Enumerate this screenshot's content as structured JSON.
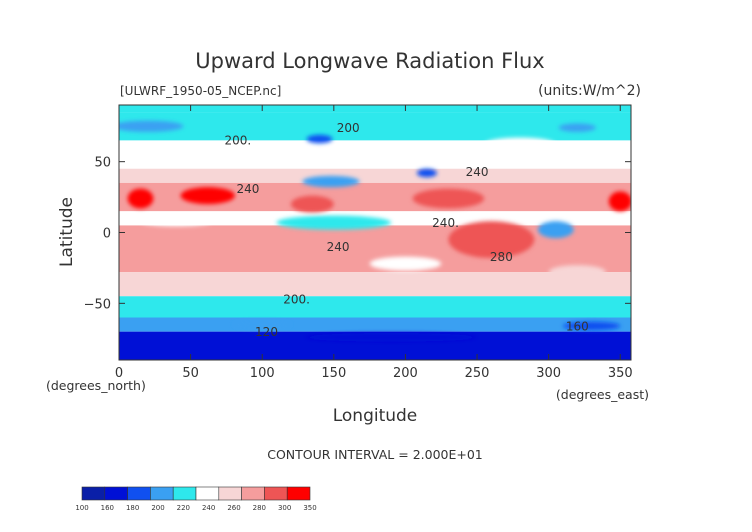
{
  "chart_data": {
    "type": "heatmap",
    "title": "Upward Longwave Radiation Flux",
    "subtitle_left": "[ULWRF_1950-05_NCEP.nc]",
    "subtitle_right": "(units:W/m^2)",
    "xlabel": "Longitude",
    "ylabel": "Latitude",
    "x_unit_label": "(degrees_east)",
    "y_unit_label": "(degrees_north)",
    "xlim": [
      0,
      357.5
    ],
    "ylim": [
      -90,
      90
    ],
    "x_ticks": [
      0,
      50,
      100,
      150,
      200,
      250,
      300,
      350
    ],
    "x_tick_labels": [
      "0",
      "50",
      "100",
      "150",
      "200",
      "250",
      "300",
      "350"
    ],
    "y_ticks": [
      50,
      0,
      -50
    ],
    "y_tick_labels": [
      "50",
      "0",
      "−50"
    ],
    "contour_interval_text": "CONTOUR INTERVAL = 2.000E+01",
    "colorbar": {
      "boundaries": [
        100,
        140,
        160,
        180,
        200,
        220,
        240,
        260,
        280,
        300,
        350
      ],
      "tick_labels": [
        "100",
        "160",
        "180",
        "200",
        "220",
        "240",
        "260",
        "280",
        "300",
        "350"
      ],
      "colors": [
        "#0a1fa8",
        "#0010d6",
        "#1050f0",
        "#3aa0f2",
        "#2ee8ec",
        "#ffffff",
        "#f7d6d6",
        "#f59d9d",
        "#ee5555",
        "#ff0000"
      ]
    },
    "contour_labels": [
      {
        "text": "200",
        "lon": 160,
        "lat": 71
      },
      {
        "text": "200.",
        "lon": 83,
        "lat": 62
      },
      {
        "text": "240",
        "lon": 250,
        "lat": 40
      },
      {
        "text": "240",
        "lon": 90,
        "lat": 28
      },
      {
        "text": "240.",
        "lon": 228,
        "lat": 4
      },
      {
        "text": "240",
        "lon": 153,
        "lat": -13
      },
      {
        "text": "280",
        "lon": 267,
        "lat": -20
      },
      {
        "text": "200.",
        "lon": 124,
        "lat": -50
      },
      {
        "text": "120",
        "lon": 103,
        "lat": -73
      },
      {
        "text": "160",
        "lon": 320,
        "lat": -69
      }
    ],
    "bands": [
      {
        "lat_top": 90,
        "lat_bottom": 85,
        "value": 205
      },
      {
        "lat_top": 85,
        "lat_bottom": 65,
        "value": 215
      },
      {
        "lat_top": 65,
        "lat_bottom": 45,
        "value": 232
      },
      {
        "lat_top": 45,
        "lat_bottom": 35,
        "value": 248
      },
      {
        "lat_top": 35,
        "lat_bottom": 15,
        "value": 275
      },
      {
        "lat_top": 15,
        "lat_bottom": 5,
        "value": 238
      },
      {
        "lat_top": 5,
        "lat_bottom": -12,
        "value": 262
      },
      {
        "lat_top": -12,
        "lat_bottom": -28,
        "value": 268
      },
      {
        "lat_top": -28,
        "lat_bottom": -45,
        "value": 242
      },
      {
        "lat_top": -45,
        "lat_bottom": -60,
        "value": 215
      },
      {
        "lat_top": -60,
        "lat_bottom": -70,
        "value": 195
      },
      {
        "lat_top": -70,
        "lat_bottom": -90,
        "value": 150
      }
    ],
    "patches": [
      {
        "lon": 62,
        "lat": 26,
        "w": 38,
        "h": 12,
        "value": 305
      },
      {
        "lon": 15,
        "lat": 24,
        "w": 18,
        "h": 14,
        "value": 305
      },
      {
        "lon": 350,
        "lat": 22,
        "w": 16,
        "h": 14,
        "value": 305
      },
      {
        "lon": 230,
        "lat": 24,
        "w": 50,
        "h": 14,
        "value": 285
      },
      {
        "lon": 135,
        "lat": 20,
        "w": 30,
        "h": 12,
        "value": 285
      },
      {
        "lon": 260,
        "lat": -5,
        "w": 60,
        "h": 26,
        "value": 285
      },
      {
        "lon": 150,
        "lat": 7,
        "w": 80,
        "h": 10,
        "value": 215
      },
      {
        "lon": 40,
        "lat": 8,
        "w": 50,
        "h": 7,
        "value": 230
      },
      {
        "lon": 305,
        "lat": 2,
        "w": 25,
        "h": 12,
        "value": 195
      },
      {
        "lon": 148,
        "lat": 36,
        "w": 40,
        "h": 8,
        "value": 190
      },
      {
        "lon": 215,
        "lat": 42,
        "w": 14,
        "h": 6,
        "value": 175
      },
      {
        "lon": 140,
        "lat": 66,
        "w": 18,
        "h": 6,
        "value": 170
      },
      {
        "lon": 320,
        "lat": 74,
        "w": 26,
        "h": 6,
        "value": 195
      },
      {
        "lon": 20,
        "lat": 75,
        "w": 50,
        "h": 8,
        "value": 195
      },
      {
        "lon": 280,
        "lat": 62,
        "w": 50,
        "h": 10,
        "value": 225
      },
      {
        "lon": 200,
        "lat": -22,
        "w": 50,
        "h": 10,
        "value": 232
      },
      {
        "lon": 320,
        "lat": -28,
        "w": 40,
        "h": 10,
        "value": 248
      },
      {
        "lon": 100,
        "lat": -65,
        "w": 40,
        "h": 6,
        "value": 195
      },
      {
        "lon": 190,
        "lat": -74,
        "w": 120,
        "h": 6,
        "value": 140
      },
      {
        "lon": 330,
        "lat": -66,
        "w": 40,
        "h": 6,
        "value": 175
      }
    ]
  }
}
